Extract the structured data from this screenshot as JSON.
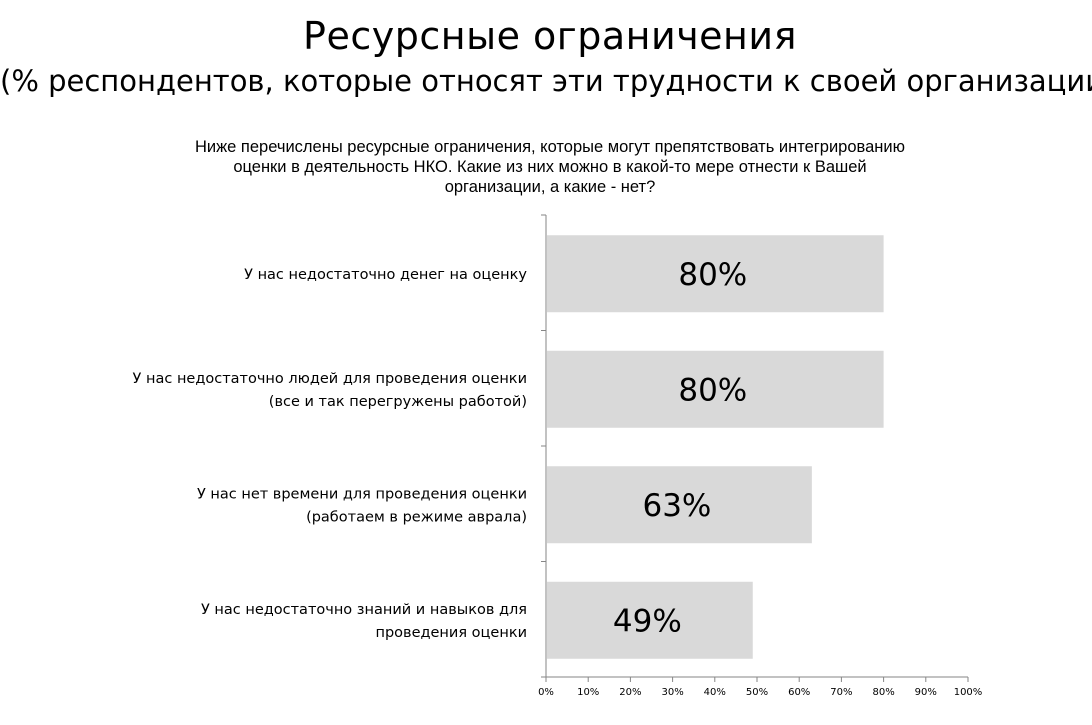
{
  "title": "Ресурсные ограничения",
  "subtitle": "(% респондентов, которые относят эти трудности к своей организации)",
  "question": "Ниже перечислены ресурсные ограничения, которые могут препятствовать интегрированию оценки в деятельность НКО. Какие из них можно в какой-то мере отнести к Вашей организации, а какие - нет?",
  "colors": {
    "bar": "#d9d9d9",
    "axis": "#868686",
    "text": "#000000"
  },
  "chart_data": {
    "type": "bar",
    "orientation": "horizontal",
    "categories": [
      [
        "У нас недостаточно денег на оценку"
      ],
      [
        "У нас недостаточно людей для проведения оценки",
        "(все и так перегружены работой)"
      ],
      [
        "У нас нет времени для проведения оценки",
        "(работаем в режиме аврала)"
      ],
      [
        "У нас недостаточно знаний и навыков для",
        "проведения оценки"
      ]
    ],
    "values": [
      80,
      80,
      63,
      49
    ],
    "data_labels": [
      "80%",
      "80%",
      "63%",
      "49%"
    ],
    "xlim": [
      0,
      100
    ],
    "x_ticks": [
      "0%",
      "10%",
      "20%",
      "30%",
      "40%",
      "50%",
      "60%",
      "70%",
      "80%",
      "90%",
      "100%"
    ],
    "grid": false,
    "legend": "none"
  }
}
